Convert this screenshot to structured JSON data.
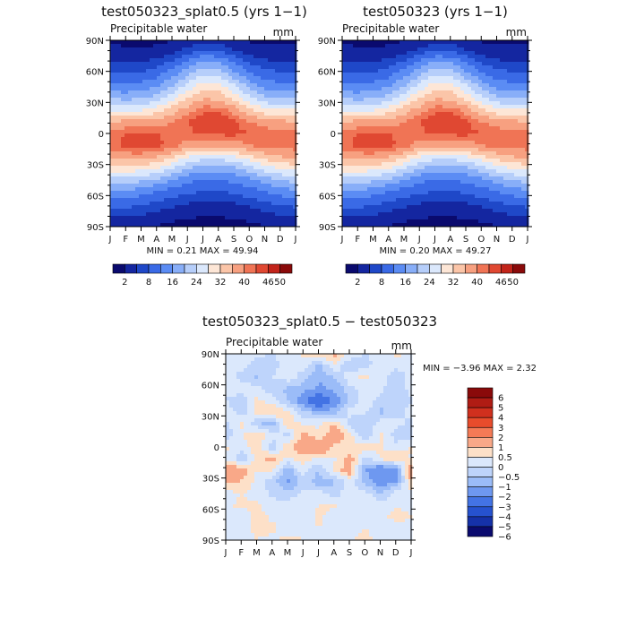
{
  "chart_data": [
    {
      "type": "heatmap",
      "title": "test050323_splat0.5 (yrs 1−1)",
      "subtitle": "Precipitable water",
      "units": "mm",
      "stats_text": "MIN =    0.21  MAX =    49.94",
      "x_ticks": [
        "J",
        "F",
        "M",
        "A",
        "M",
        "J",
        "J",
        "A",
        "S",
        "O",
        "N",
        "D",
        "J"
      ],
      "y_ticks": [
        "90N",
        "60N",
        "30N",
        "0",
        "30S",
        "60S",
        "90S"
      ],
      "y_range": [
        -90,
        90
      ],
      "colorbar_labels": [
        "2",
        "8",
        "16",
        "24",
        "32",
        "40",
        "46",
        "50"
      ],
      "grid": [
        [
          1.5,
          1.4,
          1.3,
          1.4,
          1.8,
          2.5,
          3.5,
          3.3,
          2.4,
          1.7,
          1.4,
          1.5,
          1.5
        ],
        [
          3.0,
          2.6,
          2.4,
          2.8,
          4.0,
          6.5,
          9.0,
          8.5,
          5.5,
          3.6,
          3.0,
          3.0,
          3.0
        ],
        [
          5.5,
          5.2,
          5.5,
          6.5,
          9.5,
          14,
          18,
          17,
          12,
          8.0,
          6.0,
          5.5,
          5.5
        ],
        [
          9.0,
          8.5,
          9.0,
          11,
          15,
          20,
          24,
          23,
          18,
          13,
          10,
          9.0,
          9.0
        ],
        [
          14,
          13,
          14,
          16,
          20,
          26,
          31,
          30,
          25,
          19,
          15,
          14,
          14
        ],
        [
          20,
          19,
          20,
          22,
          27,
          32,
          36,
          35,
          31,
          25,
          21,
          20,
          20
        ],
        [
          28,
          27,
          28,
          30,
          34,
          38,
          42,
          42,
          38,
          33,
          29,
          28,
          28
        ],
        [
          36,
          37,
          37,
          38,
          40,
          43,
          46,
          46,
          44,
          40,
          38,
          37,
          36
        ],
        [
          41,
          43,
          44,
          43,
          42,
          42,
          44,
          44,
          44,
          43,
          42,
          41,
          41
        ],
        [
          42,
          44,
          45,
          44,
          42,
          38,
          37,
          37,
          38,
          40,
          42,
          42,
          42
        ],
        [
          37,
          38,
          38,
          36,
          33,
          28,
          26,
          26,
          28,
          31,
          34,
          36,
          37
        ],
        [
          30,
          30,
          30,
          28,
          24,
          20,
          18,
          18,
          19,
          22,
          26,
          28,
          30
        ],
        [
          22,
          22,
          21,
          19,
          16,
          13,
          12,
          12,
          13,
          15,
          18,
          20,
          22
        ],
        [
          15,
          15,
          14,
          12,
          10,
          8.5,
          8.0,
          8.0,
          8.5,
          10,
          12,
          14,
          15
        ],
        [
          9.5,
          9.5,
          8.5,
          7.5,
          6.0,
          5.0,
          4.5,
          4.5,
          5.0,
          6.0,
          7.5,
          8.5,
          9.5
        ],
        [
          5.5,
          5.5,
          5.0,
          4.0,
          3.0,
          2.5,
          2.2,
          2.2,
          2.5,
          3.0,
          4.0,
          5.0,
          5.5
        ],
        [
          2.5,
          2.5,
          2.3,
          1.8,
          1.3,
          1.0,
          0.8,
          0.8,
          1.0,
          1.3,
          1.8,
          2.3,
          2.5
        ]
      ]
    },
    {
      "type": "heatmap",
      "title": "test050323 (yrs 1−1)",
      "subtitle": "Precipitable water",
      "units": "mm",
      "stats_text": "MIN =    0.20  MAX =    49.27",
      "x_ticks": [
        "J",
        "F",
        "M",
        "A",
        "M",
        "J",
        "J",
        "A",
        "S",
        "O",
        "N",
        "D",
        "J"
      ],
      "y_ticks": [
        "90N",
        "60N",
        "30N",
        "0",
        "30S",
        "60S",
        "90S"
      ],
      "y_range": [
        -90,
        90
      ],
      "colorbar_labels": [
        "2",
        "8",
        "16",
        "24",
        "32",
        "40",
        "46",
        "50"
      ],
      "grid": [
        [
          1.5,
          1.4,
          1.3,
          1.4,
          1.8,
          2.5,
          3.4,
          3.2,
          2.3,
          1.7,
          1.4,
          1.5,
          1.5
        ],
        [
          3.0,
          2.6,
          2.4,
          2.8,
          4.0,
          6.4,
          8.8,
          8.4,
          5.4,
          3.6,
          3.0,
          3.0,
          3.0
        ],
        [
          5.5,
          5.2,
          5.5,
          6.5,
          9.4,
          14,
          18,
          17,
          12,
          8.0,
          6.0,
          5.5,
          5.5
        ],
        [
          9.0,
          8.5,
          9.0,
          11,
          15,
          20,
          24,
          23,
          18,
          13,
          10,
          9.0,
          9.0
        ],
        [
          14,
          13,
          14,
          16,
          20,
          26,
          31,
          30,
          25,
          19,
          15,
          14,
          14
        ],
        [
          20,
          19,
          20,
          22,
          27,
          32,
          36,
          35,
          31,
          25,
          21,
          20,
          20
        ],
        [
          28,
          27,
          28,
          30,
          34,
          38,
          42,
          42,
          38,
          33,
          29,
          28,
          28
        ],
        [
          36,
          37,
          37,
          38,
          40,
          43,
          46,
          46,
          44,
          40,
          38,
          37,
          36
        ],
        [
          41,
          43,
          44,
          43,
          42,
          42,
          44,
          44,
          44,
          43,
          42,
          41,
          41
        ],
        [
          42,
          44,
          45,
          44,
          42,
          38,
          37,
          37,
          38,
          40,
          42,
          42,
          42
        ],
        [
          37,
          38,
          38,
          36,
          33,
          28,
          26,
          26,
          28,
          31,
          34,
          36,
          37
        ],
        [
          30,
          30,
          30,
          28,
          24,
          20,
          18,
          18,
          19,
          22,
          26,
          28,
          30
        ],
        [
          22,
          22,
          21,
          19,
          16,
          13,
          12,
          12,
          13,
          15,
          18,
          20,
          22
        ],
        [
          15,
          15,
          14,
          12,
          10,
          8.5,
          8.0,
          8.0,
          8.5,
          10,
          12,
          14,
          15
        ],
        [
          9.5,
          9.5,
          8.5,
          7.5,
          6.0,
          5.0,
          4.5,
          4.5,
          5.0,
          6.0,
          7.5,
          8.5,
          9.5
        ],
        [
          5.5,
          5.5,
          5.0,
          4.0,
          3.0,
          2.5,
          2.2,
          2.2,
          2.5,
          3.0,
          4.0,
          5.0,
          5.5
        ],
        [
          2.5,
          2.5,
          2.3,
          1.8,
          1.3,
          1.0,
          0.8,
          0.8,
          1.0,
          1.3,
          1.8,
          2.3,
          2.5
        ]
      ]
    },
    {
      "type": "heatmap",
      "title": "test050323_splat0.5 − test050323",
      "subtitle": "Precipitable water",
      "units": "mm",
      "stats_text": "MIN =   −3.96  MAX =    2.32",
      "x_ticks": [
        "J",
        "F",
        "M",
        "A",
        "M",
        "J",
        "J",
        "A",
        "S",
        "O",
        "N",
        "D",
        "J"
      ],
      "y_ticks": [
        "90N",
        "60N",
        "30N",
        "0",
        "30S",
        "60S",
        "90S"
      ],
      "y_range": [
        -90,
        90
      ],
      "colorbar_labels": [
        "6",
        "5",
        "4",
        "3",
        "2",
        "1",
        "0.5",
        "0",
        "−0.5",
        "−1",
        "−2",
        "−3",
        "−4",
        "−5",
        "−6"
      ],
      "grid": [
        [
          0.2,
          0.3,
          0.1,
          0,
          0.2,
          0.6,
          0.8,
          1.2,
          0.3,
          0,
          0.1,
          0.7,
          0.3
        ],
        [
          0.1,
          0.2,
          -0.3,
          -0.2,
          0.3,
          0.2,
          -0.6,
          0.4,
          -0.4,
          -0.2,
          0.3,
          0.2,
          0.1
        ],
        [
          0.3,
          -0.2,
          -0.6,
          0,
          0.3,
          -0.3,
          -0.8,
          -0.5,
          0.4,
          0.6,
          0.2,
          -0.4,
          0.3
        ],
        [
          0.2,
          0.4,
          0.2,
          -0.4,
          -0.6,
          -0.7,
          -1.2,
          -0.9,
          -0.2,
          0.3,
          0.1,
          -0.3,
          0.2
        ],
        [
          0,
          -0.4,
          0.6,
          0.3,
          -0.5,
          -1.5,
          -3.5,
          -1.4,
          -0.4,
          0.3,
          -0.2,
          -0.5,
          0
        ],
        [
          0.4,
          -0.3,
          0.7,
          1.2,
          0.6,
          -0.3,
          -0.8,
          -0.7,
          0.2,
          0.1,
          -0.6,
          -0.4,
          0.4
        ],
        [
          -0.2,
          0.6,
          -0.4,
          -0.8,
          0.9,
          0.4,
          0.4,
          1.0,
          -0.3,
          -0.5,
          0.3,
          0.2,
          -0.2
        ],
        [
          -0.4,
          0.4,
          0.9,
          0.3,
          -0.2,
          1.2,
          0.6,
          1.5,
          0.7,
          -0.4,
          0.6,
          -0.3,
          -0.4
        ],
        [
          0.6,
          0.3,
          0.8,
          -0.4,
          0.9,
          1.6,
          2.0,
          0.9,
          0.5,
          0.8,
          0.5,
          0.2,
          0.6
        ],
        [
          0.4,
          -0.5,
          0.7,
          1.3,
          0.4,
          0.8,
          0.3,
          0.4,
          1.3,
          -0.2,
          0.6,
          0.9,
          0.4
        ],
        [
          2.0,
          1.3,
          0.5,
          0.6,
          -0.8,
          0.3,
          -0.5,
          0.6,
          1.4,
          -1.0,
          -1.8,
          -1.3,
          2.0
        ],
        [
          1.2,
          1.0,
          0.3,
          -0.3,
          -1.1,
          -0.3,
          -0.8,
          -0.6,
          0.3,
          -0.7,
          -1.4,
          -1.0,
          1.2
        ],
        [
          0.3,
          0.5,
          0.3,
          -0.1,
          -0.4,
          0.1,
          0.2,
          -0.3,
          0.4,
          0.2,
          -0.5,
          0.3,
          0.3
        ],
        [
          0.4,
          0.6,
          0.6,
          0.2,
          0.3,
          0.4,
          0.5,
          0.6,
          0.2,
          0.4,
          0.2,
          0.5,
          0.4
        ],
        [
          0.5,
          0.2,
          0.7,
          0.4,
          0.5,
          0.2,
          0.6,
          0.3,
          0.5,
          0.2,
          0.4,
          0.6,
          0.5
        ],
        [
          0.4,
          0.3,
          0.6,
          0.6,
          0.3,
          0.4,
          0.5,
          0.4,
          0.3,
          0.5,
          0.3,
          0.4,
          0.4
        ],
        [
          0.3,
          0.4,
          0.5,
          0.4,
          0.6,
          0.5,
          0.4,
          0.3,
          0.5,
          0.6,
          0.4,
          0.3,
          0.3
        ]
      ]
    }
  ],
  "colors": {
    "sequential": [
      "#0a0a6e",
      "#1426a0",
      "#1f48c8",
      "#3a6ae6",
      "#5b8cf4",
      "#88aef8",
      "#b6cefa",
      "#dbe8fc",
      "#fde6d6",
      "#fbc5a8",
      "#f7a080",
      "#f07455",
      "#e04832",
      "#c2241a",
      "#8a0a0a"
    ],
    "diverging": [
      "#8a0a0a",
      "#b01c14",
      "#d0301e",
      "#e84c2c",
      "#f47a56",
      "#f9a888",
      "#fde0c8",
      "#dbe8fc",
      "#bed4fb",
      "#9bbcf8",
      "#6e98f0",
      "#4373e4",
      "#2652cf",
      "#1531a8",
      "#0a0a6e"
    ]
  }
}
